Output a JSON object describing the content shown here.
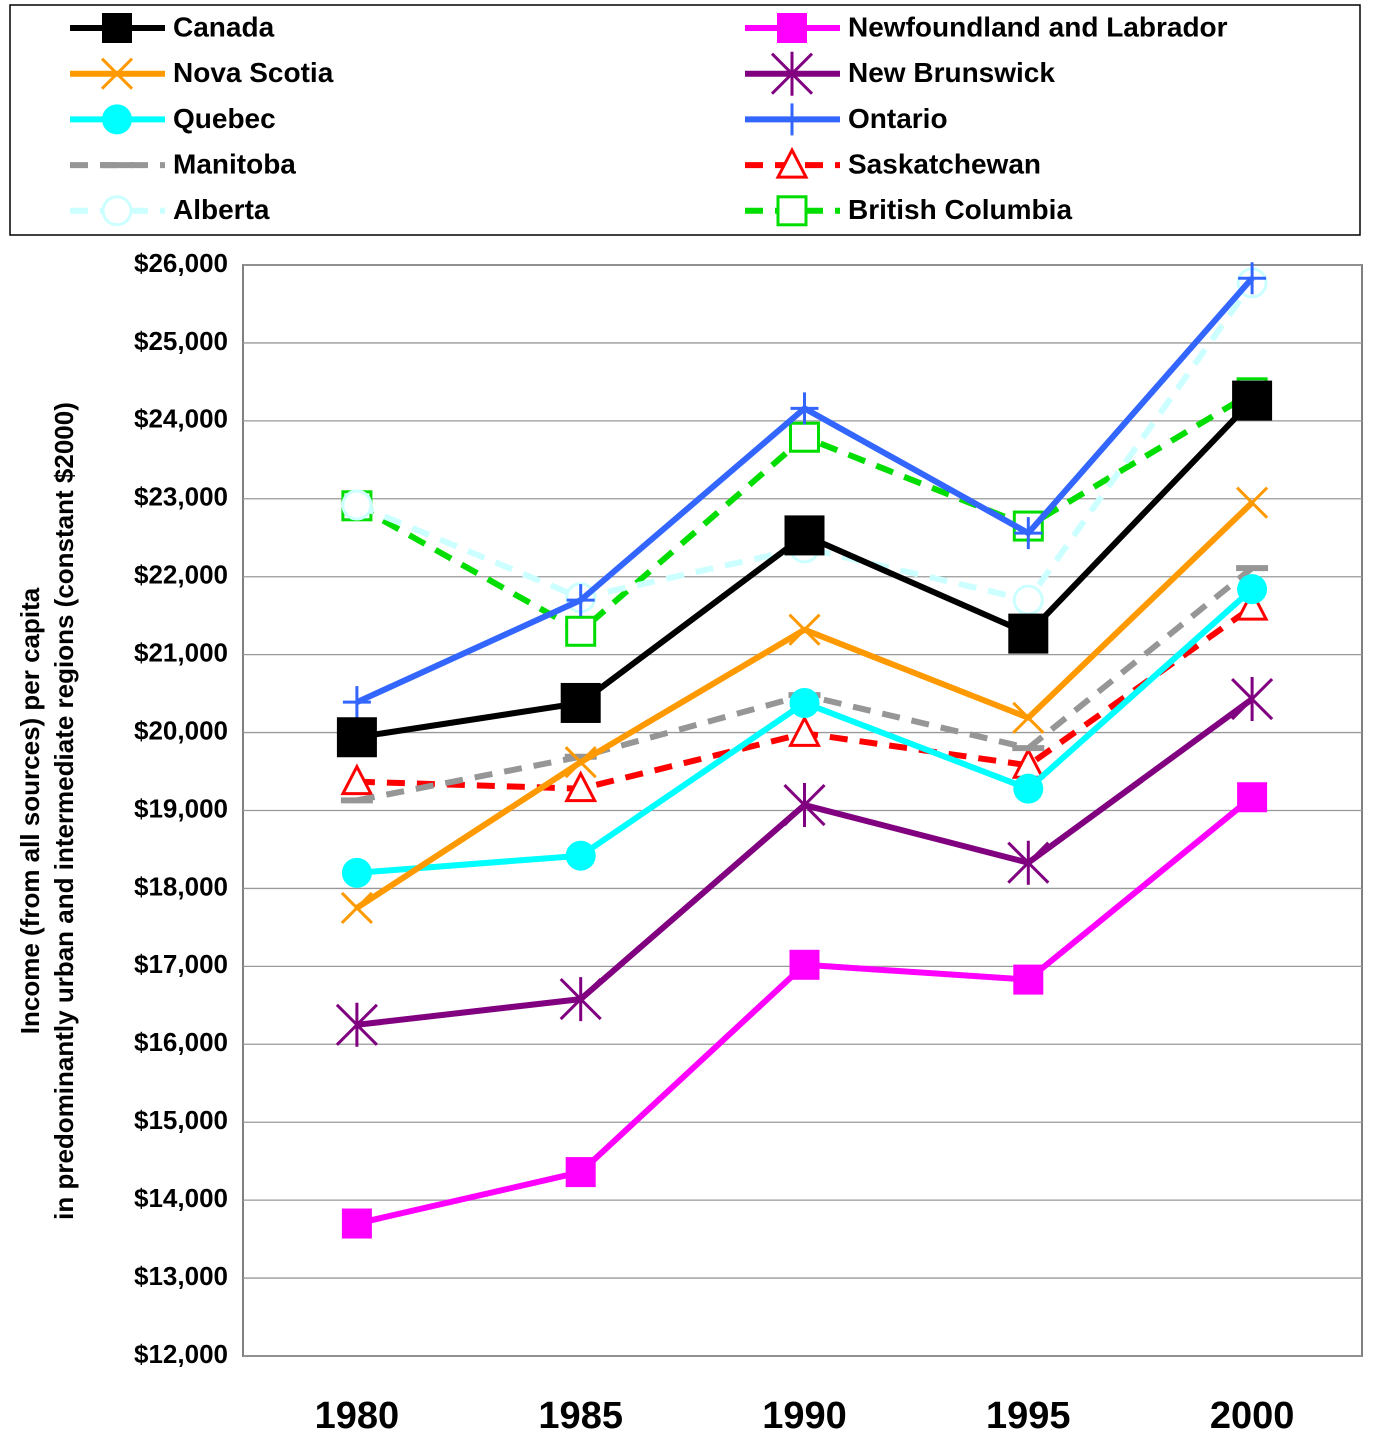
{
  "chart_data": {
    "type": "line",
    "ylabel": [
      "Income (from all sources) per capita",
      "in predominantly urban and intermediate regions (constant $2000)"
    ],
    "categories": [
      "1980",
      "1985",
      "1990",
      "1995",
      "2000"
    ],
    "ylim": [
      12000,
      26000
    ],
    "yticks": [
      {
        "value": 12000,
        "label": "$12,000"
      },
      {
        "value": 13000,
        "label": "$13,000"
      },
      {
        "value": 14000,
        "label": "$14,000"
      },
      {
        "value": 15000,
        "label": "$15,000"
      },
      {
        "value": 16000,
        "label": "$16,000"
      },
      {
        "value": 17000,
        "label": "$17,000"
      },
      {
        "value": 18000,
        "label": "$18,000"
      },
      {
        "value": 19000,
        "label": "$19,000"
      },
      {
        "value": 20000,
        "label": "$20,000"
      },
      {
        "value": 21000,
        "label": "$21,000"
      },
      {
        "value": 22000,
        "label": "$22,000"
      },
      {
        "value": 23000,
        "label": "$23,000"
      },
      {
        "value": 24000,
        "label": "$24,000"
      },
      {
        "value": 25000,
        "label": "$25,000"
      },
      {
        "value": 26000,
        "label": "$26,000"
      }
    ],
    "grid": true,
    "legend": "top",
    "series": [
      {
        "name": "Canada",
        "color": "#000000",
        "marker": "square-big",
        "dashed": false,
        "values": [
          19940,
          20380,
          22530,
          21270,
          24260
        ]
      },
      {
        "name": "Newfoundland and Labrador",
        "color": "#ff00ff",
        "marker": "square",
        "dashed": false,
        "values": [
          13700,
          14360,
          17020,
          16830,
          19170
        ]
      },
      {
        "name": "Nova Scotia",
        "color": "#ff9900",
        "marker": "x",
        "dashed": false,
        "values": [
          17750,
          19620,
          21320,
          20190,
          22950
        ]
      },
      {
        "name": "New Brunswick",
        "color": "#800080",
        "marker": "asterisk",
        "dashed": false,
        "values": [
          16250,
          16580,
          19070,
          18330,
          20430
        ]
      },
      {
        "name": "Quebec",
        "color": "#00ffff",
        "marker": "circle",
        "dashed": false,
        "values": [
          18200,
          18420,
          20380,
          19280,
          21840
        ]
      },
      {
        "name": "Ontario",
        "color": "#3366ff",
        "marker": "plus",
        "dashed": false,
        "values": [
          20390,
          21700,
          24160,
          22560,
          25830
        ]
      },
      {
        "name": "Manitoba",
        "color": "#969696",
        "marker": "dash",
        "dashed": true,
        "values": [
          19130,
          19690,
          20480,
          19800,
          22110
        ]
      },
      {
        "name": "Saskatchewan",
        "color": "#ff0000",
        "marker": "triangle",
        "dashed": true,
        "values": [
          19370,
          19280,
          19990,
          19580,
          21610
        ]
      },
      {
        "name": "Alberta",
        "color": "#ccffff",
        "marker": "hollow-circle",
        "dashed": true,
        "values": [
          22920,
          21730,
          22370,
          21700,
          25770
        ]
      },
      {
        "name": "British Columbia",
        "color": "#00dd00",
        "marker": "hollow-square",
        "dashed": true,
        "values": [
          22910,
          21300,
          23790,
          22650,
          24360
        ]
      }
    ]
  }
}
